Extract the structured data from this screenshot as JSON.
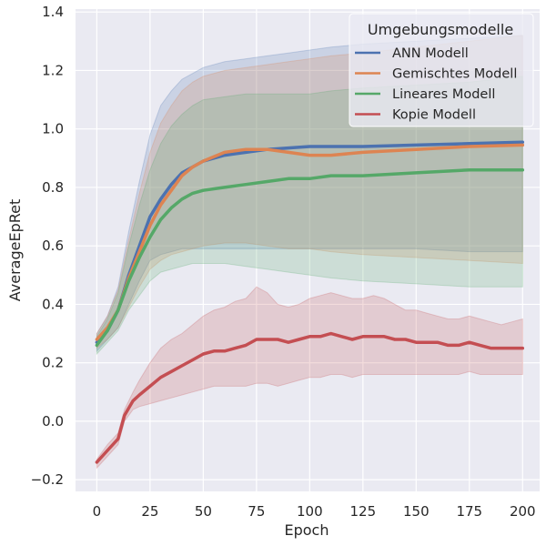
{
  "chart_data": {
    "type": "line",
    "xlabel": "Epoch",
    "ylabel": "AverageEpRet",
    "xlim": [
      -10,
      208
    ],
    "ylim": [
      -0.24,
      1.41
    ],
    "xticks": [
      0,
      25,
      50,
      75,
      100,
      125,
      150,
      175,
      200
    ],
    "yticks": [
      -0.2,
      0.0,
      0.2,
      0.4,
      0.6,
      0.8,
      1.0,
      1.2,
      1.4
    ],
    "ytick_labels": [
      "−0.2",
      "0.0",
      "0.2",
      "0.4",
      "0.6",
      "0.8",
      "1.0",
      "1.2",
      "1.4"
    ],
    "grid": true,
    "legend": {
      "title": "Umgebungsmodelle",
      "placement": "top-right"
    },
    "series": [
      {
        "name": "ANN Modell",
        "color": "#4c72b0",
        "x": [
          0,
          5,
          10,
          15,
          20,
          25,
          30,
          35,
          40,
          45,
          50,
          60,
          70,
          80,
          90,
          100,
          110,
          125,
          150,
          175,
          200
        ],
        "y": [
          0.27,
          0.31,
          0.38,
          0.5,
          0.6,
          0.7,
          0.76,
          0.81,
          0.85,
          0.87,
          0.89,
          0.91,
          0.92,
          0.93,
          0.935,
          0.94,
          0.94,
          0.94,
          0.945,
          0.95,
          0.955
        ],
        "upper": [
          0.3,
          0.36,
          0.46,
          0.65,
          0.82,
          0.98,
          1.08,
          1.13,
          1.17,
          1.19,
          1.21,
          1.23,
          1.24,
          1.25,
          1.26,
          1.27,
          1.28,
          1.29,
          1.3,
          1.31,
          1.32
        ],
        "lower": [
          0.24,
          0.28,
          0.32,
          0.4,
          0.48,
          0.55,
          0.57,
          0.58,
          0.59,
          0.59,
          0.59,
          0.59,
          0.59,
          0.59,
          0.59,
          0.59,
          0.59,
          0.59,
          0.59,
          0.58,
          0.58
        ]
      },
      {
        "name": "Gemischtes Modell",
        "color": "#dd8452",
        "x": [
          0,
          5,
          10,
          15,
          20,
          25,
          30,
          35,
          40,
          45,
          50,
          60,
          70,
          80,
          90,
          100,
          110,
          125,
          150,
          175,
          200
        ],
        "y": [
          0.28,
          0.32,
          0.38,
          0.49,
          0.58,
          0.67,
          0.74,
          0.79,
          0.84,
          0.87,
          0.89,
          0.92,
          0.93,
          0.93,
          0.92,
          0.91,
          0.91,
          0.92,
          0.93,
          0.94,
          0.945
        ],
        "upper": [
          0.3,
          0.36,
          0.45,
          0.62,
          0.78,
          0.92,
          1.02,
          1.08,
          1.13,
          1.16,
          1.18,
          1.2,
          1.21,
          1.22,
          1.23,
          1.24,
          1.25,
          1.26,
          1.28,
          1.3,
          1.32
        ],
        "lower": [
          0.25,
          0.28,
          0.32,
          0.39,
          0.46,
          0.52,
          0.55,
          0.57,
          0.58,
          0.59,
          0.6,
          0.61,
          0.61,
          0.6,
          0.59,
          0.59,
          0.58,
          0.57,
          0.56,
          0.55,
          0.54
        ]
      },
      {
        "name": "Lineares Modell",
        "color": "#55a868",
        "x": [
          0,
          5,
          10,
          15,
          20,
          25,
          30,
          35,
          40,
          45,
          50,
          60,
          70,
          80,
          90,
          100,
          110,
          125,
          150,
          175,
          200
        ],
        "y": [
          0.26,
          0.31,
          0.38,
          0.48,
          0.56,
          0.63,
          0.69,
          0.73,
          0.76,
          0.78,
          0.79,
          0.8,
          0.81,
          0.82,
          0.83,
          0.83,
          0.84,
          0.84,
          0.85,
          0.86,
          0.86
        ],
        "upper": [
          0.29,
          0.35,
          0.44,
          0.6,
          0.74,
          0.86,
          0.95,
          1.01,
          1.05,
          1.08,
          1.1,
          1.11,
          1.12,
          1.12,
          1.12,
          1.12,
          1.13,
          1.14,
          1.15,
          1.16,
          1.18
        ],
        "lower": [
          0.23,
          0.27,
          0.31,
          0.38,
          0.43,
          0.48,
          0.51,
          0.52,
          0.53,
          0.54,
          0.54,
          0.54,
          0.53,
          0.52,
          0.51,
          0.5,
          0.49,
          0.48,
          0.47,
          0.46,
          0.46
        ]
      },
      {
        "name": "Kopie Modell",
        "color": "#c44e52",
        "x": [
          0,
          5,
          10,
          13,
          17,
          20,
          25,
          30,
          35,
          40,
          45,
          50,
          55,
          60,
          65,
          70,
          75,
          80,
          85,
          90,
          95,
          100,
          105,
          110,
          115,
          120,
          125,
          130,
          135,
          140,
          145,
          150,
          155,
          160,
          165,
          170,
          175,
          180,
          185,
          190,
          195,
          200
        ],
        "y": [
          -0.14,
          -0.1,
          -0.06,
          0.02,
          0.07,
          0.09,
          0.12,
          0.15,
          0.17,
          0.19,
          0.21,
          0.23,
          0.24,
          0.24,
          0.25,
          0.26,
          0.28,
          0.28,
          0.28,
          0.27,
          0.28,
          0.29,
          0.29,
          0.3,
          0.29,
          0.28,
          0.29,
          0.29,
          0.29,
          0.28,
          0.28,
          0.27,
          0.27,
          0.27,
          0.26,
          0.26,
          0.27,
          0.26,
          0.25,
          0.25,
          0.25,
          0.25
        ],
        "upper": [
          -0.13,
          -0.08,
          -0.04,
          0.04,
          0.1,
          0.14,
          0.2,
          0.25,
          0.28,
          0.3,
          0.33,
          0.36,
          0.38,
          0.39,
          0.41,
          0.42,
          0.46,
          0.44,
          0.4,
          0.39,
          0.4,
          0.42,
          0.43,
          0.44,
          0.43,
          0.42,
          0.42,
          0.43,
          0.42,
          0.4,
          0.38,
          0.38,
          0.37,
          0.36,
          0.35,
          0.35,
          0.36,
          0.35,
          0.34,
          0.33,
          0.34,
          0.35
        ],
        "lower": [
          -0.16,
          -0.12,
          -0.08,
          0.0,
          0.04,
          0.05,
          0.06,
          0.07,
          0.08,
          0.09,
          0.1,
          0.11,
          0.12,
          0.12,
          0.12,
          0.12,
          0.13,
          0.13,
          0.12,
          0.13,
          0.14,
          0.15,
          0.15,
          0.16,
          0.16,
          0.15,
          0.16,
          0.16,
          0.16,
          0.16,
          0.16,
          0.16,
          0.16,
          0.16,
          0.16,
          0.16,
          0.17,
          0.16,
          0.16,
          0.16,
          0.16,
          0.16
        ]
      }
    ]
  }
}
